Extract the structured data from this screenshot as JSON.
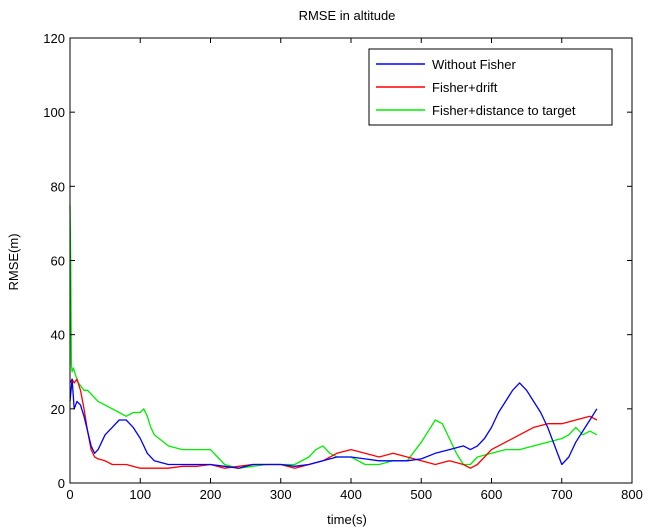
{
  "chart_data": {
    "type": "line",
    "title": "RMSE in altitude",
    "xlabel": "time(s)",
    "ylabel": "RMSE(m)",
    "xlim": [
      0,
      800
    ],
    "ylim": [
      0,
      120
    ],
    "xticks": [
      0,
      100,
      200,
      300,
      400,
      500,
      600,
      700,
      800
    ],
    "yticks": [
      0,
      20,
      40,
      60,
      80,
      100,
      120
    ],
    "grid": false,
    "legend_position": "top-right",
    "series": [
      {
        "name": "Without Fisher",
        "color": "#0000ff",
        "x": [
          0,
          3,
          6,
          10,
          15,
          20,
          25,
          30,
          35,
          40,
          45,
          50,
          60,
          70,
          80,
          90,
          100,
          110,
          120,
          140,
          160,
          180,
          200,
          220,
          240,
          260,
          280,
          300,
          320,
          340,
          360,
          380,
          400,
          420,
          440,
          460,
          480,
          500,
          520,
          540,
          560,
          570,
          580,
          590,
          600,
          610,
          620,
          630,
          640,
          650,
          660,
          670,
          680,
          690,
          700,
          710,
          720,
          730,
          740,
          750
        ],
        "y": [
          22,
          28,
          20,
          22,
          21,
          18,
          14,
          10,
          8,
          9,
          11,
          13,
          15,
          17,
          17,
          15,
          12,
          8,
          6,
          5,
          5,
          5,
          5,
          4.5,
          4,
          5,
          5,
          5,
          4.5,
          5,
          6,
          7,
          7,
          6.5,
          6,
          6,
          6,
          6.5,
          8,
          9,
          10,
          9,
          10,
          12,
          15,
          19,
          22,
          25,
          27,
          25,
          22,
          19,
          15,
          10,
          5,
          7,
          11,
          14,
          17,
          20
        ]
      },
      {
        "name": "Fisher+drift",
        "color": "#ff0000",
        "x": [
          0,
          3,
          6,
          10,
          15,
          20,
          25,
          30,
          35,
          40,
          50,
          60,
          80,
          100,
          120,
          140,
          160,
          180,
          200,
          220,
          240,
          260,
          280,
          300,
          320,
          340,
          360,
          380,
          400,
          420,
          440,
          460,
          480,
          500,
          520,
          540,
          560,
          570,
          580,
          590,
          600,
          620,
          640,
          660,
          680,
          700,
          720,
          740,
          750
        ],
        "y": [
          27,
          28,
          27,
          28,
          25,
          20,
          14,
          9,
          7,
          6.5,
          6,
          5,
          5,
          4,
          4,
          4,
          4.5,
          4.5,
          5,
          4,
          4.5,
          5,
          5,
          5,
          4,
          5,
          6,
          8,
          9,
          8,
          7,
          8,
          7,
          6,
          5,
          6,
          5,
          4,
          5,
          7,
          9,
          11,
          13,
          15,
          16,
          16,
          17,
          18,
          17
        ]
      },
      {
        "name": "Fisher+distance to target",
        "color": "#00ee00",
        "x": [
          0,
          1,
          2,
          3,
          5,
          8,
          12,
          16,
          20,
          25,
          30,
          40,
          50,
          60,
          70,
          80,
          90,
          100,
          105,
          110,
          115,
          120,
          140,
          160,
          180,
          200,
          210,
          220,
          240,
          260,
          280,
          300,
          320,
          340,
          350,
          360,
          370,
          380,
          400,
          420,
          440,
          460,
          480,
          500,
          510,
          520,
          530,
          540,
          550,
          560,
          570,
          580,
          600,
          620,
          640,
          660,
          680,
          700,
          710,
          720,
          730,
          740,
          750
        ],
        "y": [
          75,
          60,
          32,
          30,
          31,
          29,
          27,
          26,
          25,
          25,
          24,
          22,
          21,
          20,
          19,
          18,
          19,
          19,
          20,
          18,
          15,
          13,
          10,
          9,
          9,
          9,
          7,
          5,
          4,
          4.5,
          5,
          5,
          5,
          7,
          9,
          10,
          8,
          7,
          7,
          5,
          5,
          6,
          6,
          11,
          14,
          17,
          16,
          12,
          8,
          5,
          5,
          7,
          8,
          9,
          9,
          10,
          11,
          12,
          13,
          15,
          13,
          14,
          13
        ]
      }
    ]
  }
}
